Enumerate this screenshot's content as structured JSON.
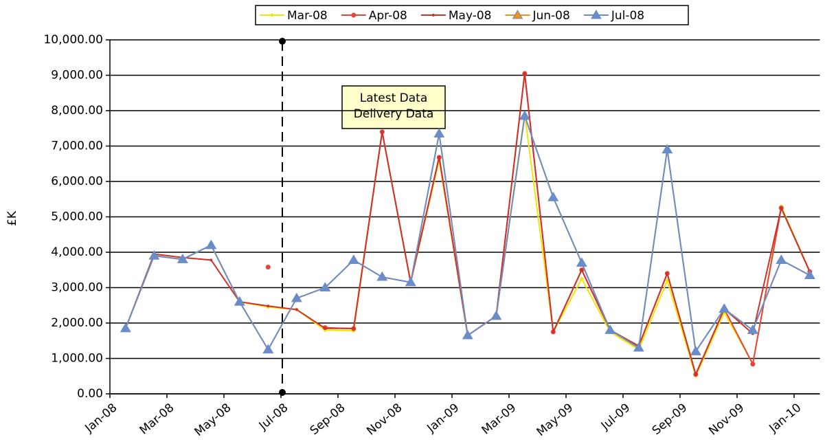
{
  "chart_data": {
    "type": "line",
    "y_label": "£K",
    "annotation": [
      "Latest Data",
      "Delivery Data"
    ],
    "categories": [
      "Jan-08",
      null,
      "Mar-08",
      null,
      "May-08",
      null,
      "Jul-08",
      null,
      "Sep-08",
      null,
      "Nov-08",
      null,
      "Jan-09",
      null,
      "Mar-09",
      null,
      "May-09",
      null,
      "Jul-09",
      null,
      "Sep-09",
      null,
      "Nov-09",
      null,
      "Jan-10"
    ],
    "series": [
      {
        "name": "Mar-08",
        "color": "#f2e600",
        "marker": "diamond",
        "values": [
          1850,
          3900,
          3800,
          4200,
          2600,
          2450,
          2380,
          1800,
          1780,
          7400,
          3150,
          6600,
          1650,
          2200,
          7900,
          1750,
          3250,
          1750,
          1250,
          3200,
          500,
          2300,
          850,
          5300,
          3450
        ]
      },
      {
        "name": "Apr-08",
        "color": "#e8423a",
        "marker": "circle",
        "values": [
          null,
          null,
          null,
          null,
          null,
          3580,
          null,
          1870,
          1840,
          7400,
          3150,
          6680,
          1650,
          2200,
          9050,
          1750,
          3500,
          1800,
          1350,
          3400,
          550,
          2400,
          840,
          5250,
          3450
        ]
      },
      {
        "name": "May-08",
        "color": "#d0302a",
        "marker": "dot",
        "values": [
          1850,
          3950,
          3850,
          3780,
          2600,
          2480,
          2380,
          1850,
          1850,
          7400,
          3150,
          6700,
          1650,
          2200,
          9050,
          1750,
          3500,
          1800,
          1350,
          3400,
          550,
          2400,
          1700,
          5250,
          3450
        ]
      },
      {
        "name": "Jun-08",
        "color": "#f0901c",
        "marker": "triangle",
        "values": [
          1850,
          3900,
          3800,
          4200,
          2600,
          1250,
          2700,
          3000,
          3780,
          3300,
          3150,
          7350,
          1650,
          2200,
          7850,
          5550,
          3700,
          1800,
          1300,
          6900,
          1200,
          2400,
          1800,
          3780,
          3350
        ]
      },
      {
        "name": "Jul-08",
        "color": "#6a8cc8",
        "marker": "triangle",
        "values": [
          1850,
          3900,
          3800,
          4200,
          2600,
          1250,
          2700,
          3000,
          3780,
          3300,
          3150,
          7350,
          1650,
          2200,
          7850,
          5550,
          3700,
          1800,
          1300,
          6900,
          1200,
          2400,
          1800,
          3780,
          3350
        ]
      }
    ],
    "ylim": [
      0,
      10000
    ],
    "yticks": [
      {
        "value": 0,
        "label": "0.00"
      },
      {
        "value": 1000,
        "label": "1,000.00"
      },
      {
        "value": 2000,
        "label": "2,000.00"
      },
      {
        "value": 3000,
        "label": "3,000.00"
      },
      {
        "value": 4000,
        "label": "4,000.00"
      },
      {
        "value": 5000,
        "label": "5,000.00"
      },
      {
        "value": 6000,
        "label": "6,000.00"
      },
      {
        "value": 7000,
        "label": "7,000.00"
      },
      {
        "value": 8000,
        "label": "8,000.00"
      },
      {
        "value": 9000,
        "label": "9,000.00"
      },
      {
        "value": 10000,
        "label": "10,000.00"
      }
    ],
    "grid": true,
    "legend": "top"
  }
}
